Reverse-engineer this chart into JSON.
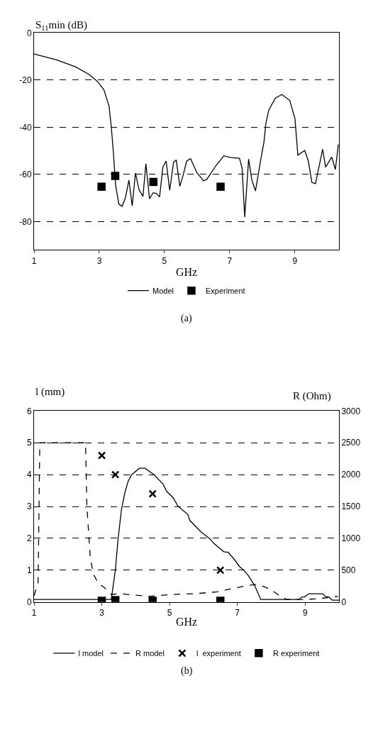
{
  "chart_data": [
    {
      "type": "line",
      "xlabel": "GHz",
      "ylabel": "S$_{11}$min (dB)",
      "xlim": [
        1,
        10.35
      ],
      "ylim": [
        -92,
        0
      ],
      "xticks": [
        1,
        3,
        5,
        7,
        9
      ],
      "yticks": [
        0,
        -20,
        -40,
        -60,
        -80
      ],
      "grid": "y",
      "legend": "bottom",
      "annotations": [
        "(a)"
      ],
      "series": [
        {
          "name": "Model",
          "color": "#000000",
          "marker": "none",
          "line_style": "solid",
          "x": [
            1,
            1.69,
            2.28,
            2.68,
            2.94,
            3.14,
            3.3,
            3.37,
            3.43,
            3.47,
            3.5,
            3.6,
            3.7,
            3.8,
            3.91,
            4.01,
            4.11,
            4.22,
            4.34,
            4.43,
            4.54,
            4.65,
            4.75,
            4.85,
            4.95,
            5.05,
            5.16,
            5.28,
            5.36,
            5.47,
            5.57,
            5.68,
            5.8,
            6.0,
            6.2,
            6.3,
            6.57,
            6.82,
            7.03,
            7.3,
            7.38,
            7.46,
            7.58,
            7.68,
            7.79,
            7.95,
            8.05,
            8.11,
            8.2,
            8.4,
            8.6,
            8.84,
            9.0,
            9.09,
            9.3,
            9.41,
            9.52,
            9.63,
            9.85,
            9.94,
            10.13,
            10.24,
            10.33
          ],
          "values": [
            -8.9,
            -11.4,
            -14.4,
            -17.5,
            -20.5,
            -24,
            -31,
            -40,
            -50,
            -58.4,
            -64.4,
            -72.5,
            -73.5,
            -70,
            -62.4,
            -73.3,
            -59.4,
            -66.5,
            -69.3,
            -55.4,
            -70.3,
            -67.8,
            -68,
            -69.5,
            -56.9,
            -54.3,
            -66.7,
            -54.8,
            -53.8,
            -65,
            -60.4,
            -54.3,
            -53.3,
            -59.4,
            -62.7,
            -62,
            -56.4,
            -52.1,
            -52.8,
            -53.1,
            -57.4,
            -78,
            -53.5,
            -62.4,
            -67,
            -53.8,
            -46.3,
            -38.2,
            -32.6,
            -27.6,
            -26.1,
            -28.6,
            -36.2,
            -51.8,
            -49.8,
            -54.3,
            -63.4,
            -63.9,
            -49.3,
            -56.9,
            -52.6,
            -57.9,
            -47.3
          ]
        },
        {
          "name": "Experiment",
          "type": "scatter",
          "color": "#000000",
          "marker": "square",
          "x": [
            3.07,
            3.49,
            4.66,
            6.72
          ],
          "values": [
            -65.2,
            -60.6,
            -63.2,
            -65.2
          ]
        }
      ]
    },
    {
      "type": "line",
      "xlabel": "GHz",
      "ylabel": "l (mm)",
      "y2label": "R (Ohm)",
      "xlim": [
        1,
        10
      ],
      "ylim": [
        0,
        6
      ],
      "y2lim": [
        0,
        3000
      ],
      "xticks": [
        1,
        3,
        5,
        7,
        9
      ],
      "yticks": [
        0,
        1,
        2,
        3,
        4,
        5,
        6
      ],
      "y2ticks": [
        0,
        500,
        1000,
        1500,
        2000,
        2500,
        3000
      ],
      "grid": "y",
      "legend": "bottom",
      "annotations": [
        "(b)"
      ],
      "series": [
        {
          "name": "l model",
          "color": "#000000",
          "marker": "none",
          "line_style": "solid",
          "x": [
            1,
            3.28,
            3.4,
            3.48,
            3.58,
            3.68,
            3.78,
            3.88,
            4.11,
            4.28,
            4.54,
            4.81,
            4.91,
            5.11,
            5.24,
            5.54,
            5.6,
            5.93,
            6.2,
            6.3,
            6.6,
            6.73,
            6.89,
            7.06,
            7.19,
            7.32,
            7.52,
            7.69,
            8.81,
            8.91,
            8.98,
            9.11,
            9.51,
            9.61,
            9.7,
            9.8,
            10
          ],
          "values": [
            0.08,
            0.08,
            1.0,
            1.98,
            2.9,
            3.43,
            3.8,
            4.0,
            4.2,
            4.2,
            4.0,
            3.7,
            3.48,
            3.27,
            3.02,
            2.75,
            2.56,
            2.2,
            1.98,
            1.85,
            1.58,
            1.56,
            1.37,
            1.12,
            1.0,
            0.84,
            0.5,
            0.08,
            0.08,
            0.16,
            0.16,
            0.26,
            0.26,
            0.17,
            0.16,
            0.06,
            0.06
          ]
        },
        {
          "name": "R model",
          "axis": "y2",
          "color": "#000000",
          "marker": "none",
          "line_style": "dashed",
          "x": [
            1,
            1.12,
            1.17,
            2.52,
            2.56,
            2.66,
            2.75,
            2.89,
            3.09,
            3.28,
            3.55,
            3.95,
            4.41,
            5.07,
            5.73,
            6.4,
            6.93,
            7.32,
            7.59,
            7.99,
            8.19,
            8.45,
            8.91,
            9.38,
            9.97
          ],
          "values": [
            100,
            300,
            2500,
            2500,
            1500,
            700,
            440,
            300,
            220,
            120,
            130,
            110,
            90,
            120,
            130,
            160,
            220,
            260,
            280,
            200,
            120,
            40,
            40,
            50,
            90
          ]
        },
        {
          "name": "l  experiment",
          "type": "scatter",
          "color": "#000000",
          "marker": "cross",
          "x": [
            3,
            3.4,
            4.5,
            6.5
          ],
          "values": [
            4.6,
            4.0,
            3.4,
            1.0
          ]
        },
        {
          "name": "R experiment",
          "type": "scatter",
          "axis": "y2",
          "color": "#000000",
          "marker": "square",
          "x": [
            3,
            3.4,
            4.5,
            6.5
          ],
          "values": [
            20,
            30,
            20,
            20
          ]
        }
      ]
    }
  ]
}
